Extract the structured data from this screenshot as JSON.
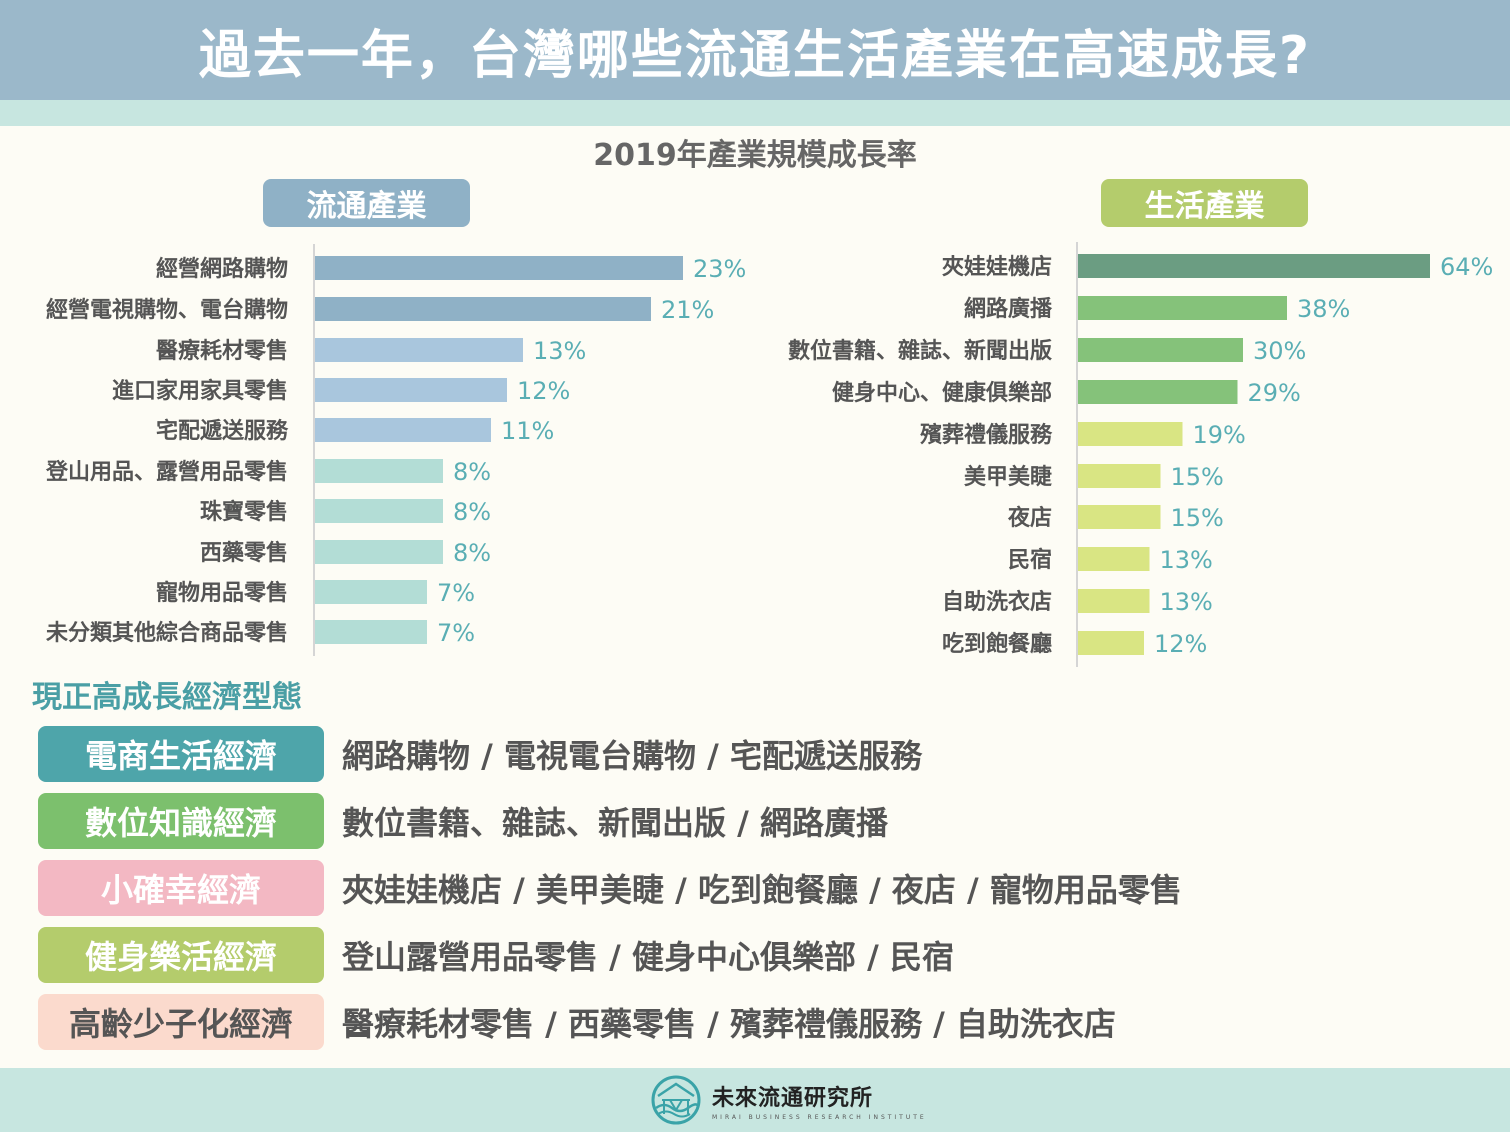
{
  "header": {
    "title": "過去一年，台灣哪些流通生活產業在高速成長?"
  },
  "chart_data": [
    {
      "type": "bar",
      "orientation": "horizontal",
      "title": "2019年產業規模成長率",
      "group_label": "流通產業",
      "categories": [
        "經營網路購物",
        "經營電視購物、電台購物",
        "醫療耗材零售",
        "進口家用家具零售",
        "宅配遞送服務",
        "登山用品、露營用品零售",
        "珠寶零售",
        "西藥零售",
        "寵物用品零售",
        "未分類其他綜合商品零售"
      ],
      "values": [
        23,
        21,
        13,
        12,
        11,
        8,
        8,
        8,
        7,
        7
      ],
      "data_labels": [
        "23%",
        "21%",
        "13%",
        "12%",
        "11%",
        "8%",
        "8%",
        "8%",
        "7%",
        "7%"
      ],
      "unit": "%",
      "colors": [
        "#8fb1c6",
        "#8fb1c6",
        "#a9c6dd",
        "#a9c6dd",
        "#a9c6dd",
        "#b3ddd6",
        "#b3ddd6",
        "#b3ddd6",
        "#b3ddd6",
        "#b3ddd6"
      ],
      "label_color": "#5aaeb4"
    },
    {
      "type": "bar",
      "orientation": "horizontal",
      "group_label": "生活產業",
      "categories": [
        "夾娃娃機店",
        "網路廣播",
        "數位書籍、雜誌、新聞出版",
        "健身中心、健康俱樂部",
        "殯葬禮儀服務",
        "美甲美睫",
        "夜店",
        "民宿",
        "自助洗衣店",
        "吃到飽餐廳"
      ],
      "values": [
        64,
        38,
        30,
        29,
        19,
        15,
        15,
        13,
        13,
        12
      ],
      "data_labels": [
        "64%",
        "38%",
        "30%",
        "29%",
        "19%",
        "15%",
        "15%",
        "13%",
        "13%",
        "12%"
      ],
      "unit": "%",
      "colors": [
        "#6b9d82",
        "#85c27a",
        "#85c27a",
        "#85c27a",
        "#d9e583",
        "#d9e583",
        "#d9e583",
        "#d9e583",
        "#d9e583",
        "#d9e583"
      ],
      "label_color": "#5aaeb4"
    }
  ],
  "economy": {
    "title": "現正高成長經濟型態",
    "rows": [
      {
        "label": "電商生活經濟",
        "items": "網路購物 / 電視電台購物 / 宅配遞送服務",
        "color": "#4ea5aa",
        "text_color": "#ffffff"
      },
      {
        "label": "數位知識經濟",
        "items": "數位書籍、雜誌、新聞出版 / 網路廣播",
        "color": "#7cc06d",
        "text_color": "#ffffff"
      },
      {
        "label": "小確幸經濟",
        "items": "夾娃娃機店 / 美甲美睫 / 吃到飽餐廳 / 夜店 / 寵物用品零售",
        "color": "#f3b8c3",
        "text_color": "#ffffff"
      },
      {
        "label": "健身樂活經濟",
        "items": "登山露營用品零售 / 健身中心俱樂部 / 民宿",
        "color": "#b4cc6c",
        "text_color": "#ffffff"
      },
      {
        "label": "高齡少子化經濟",
        "items": "醫療耗材零售 / 西藥零售 / 殯葬禮儀服務 / 自助洗衣店",
        "color": "#fbdacd",
        "text_color": "#555555"
      }
    ]
  },
  "footer": {
    "logo_name": "未來流通研究所",
    "logo_sub": "MIRAI BUSINESS RESEARCH INSTITUTE",
    "logo_icon": "wave-house-icon"
  }
}
